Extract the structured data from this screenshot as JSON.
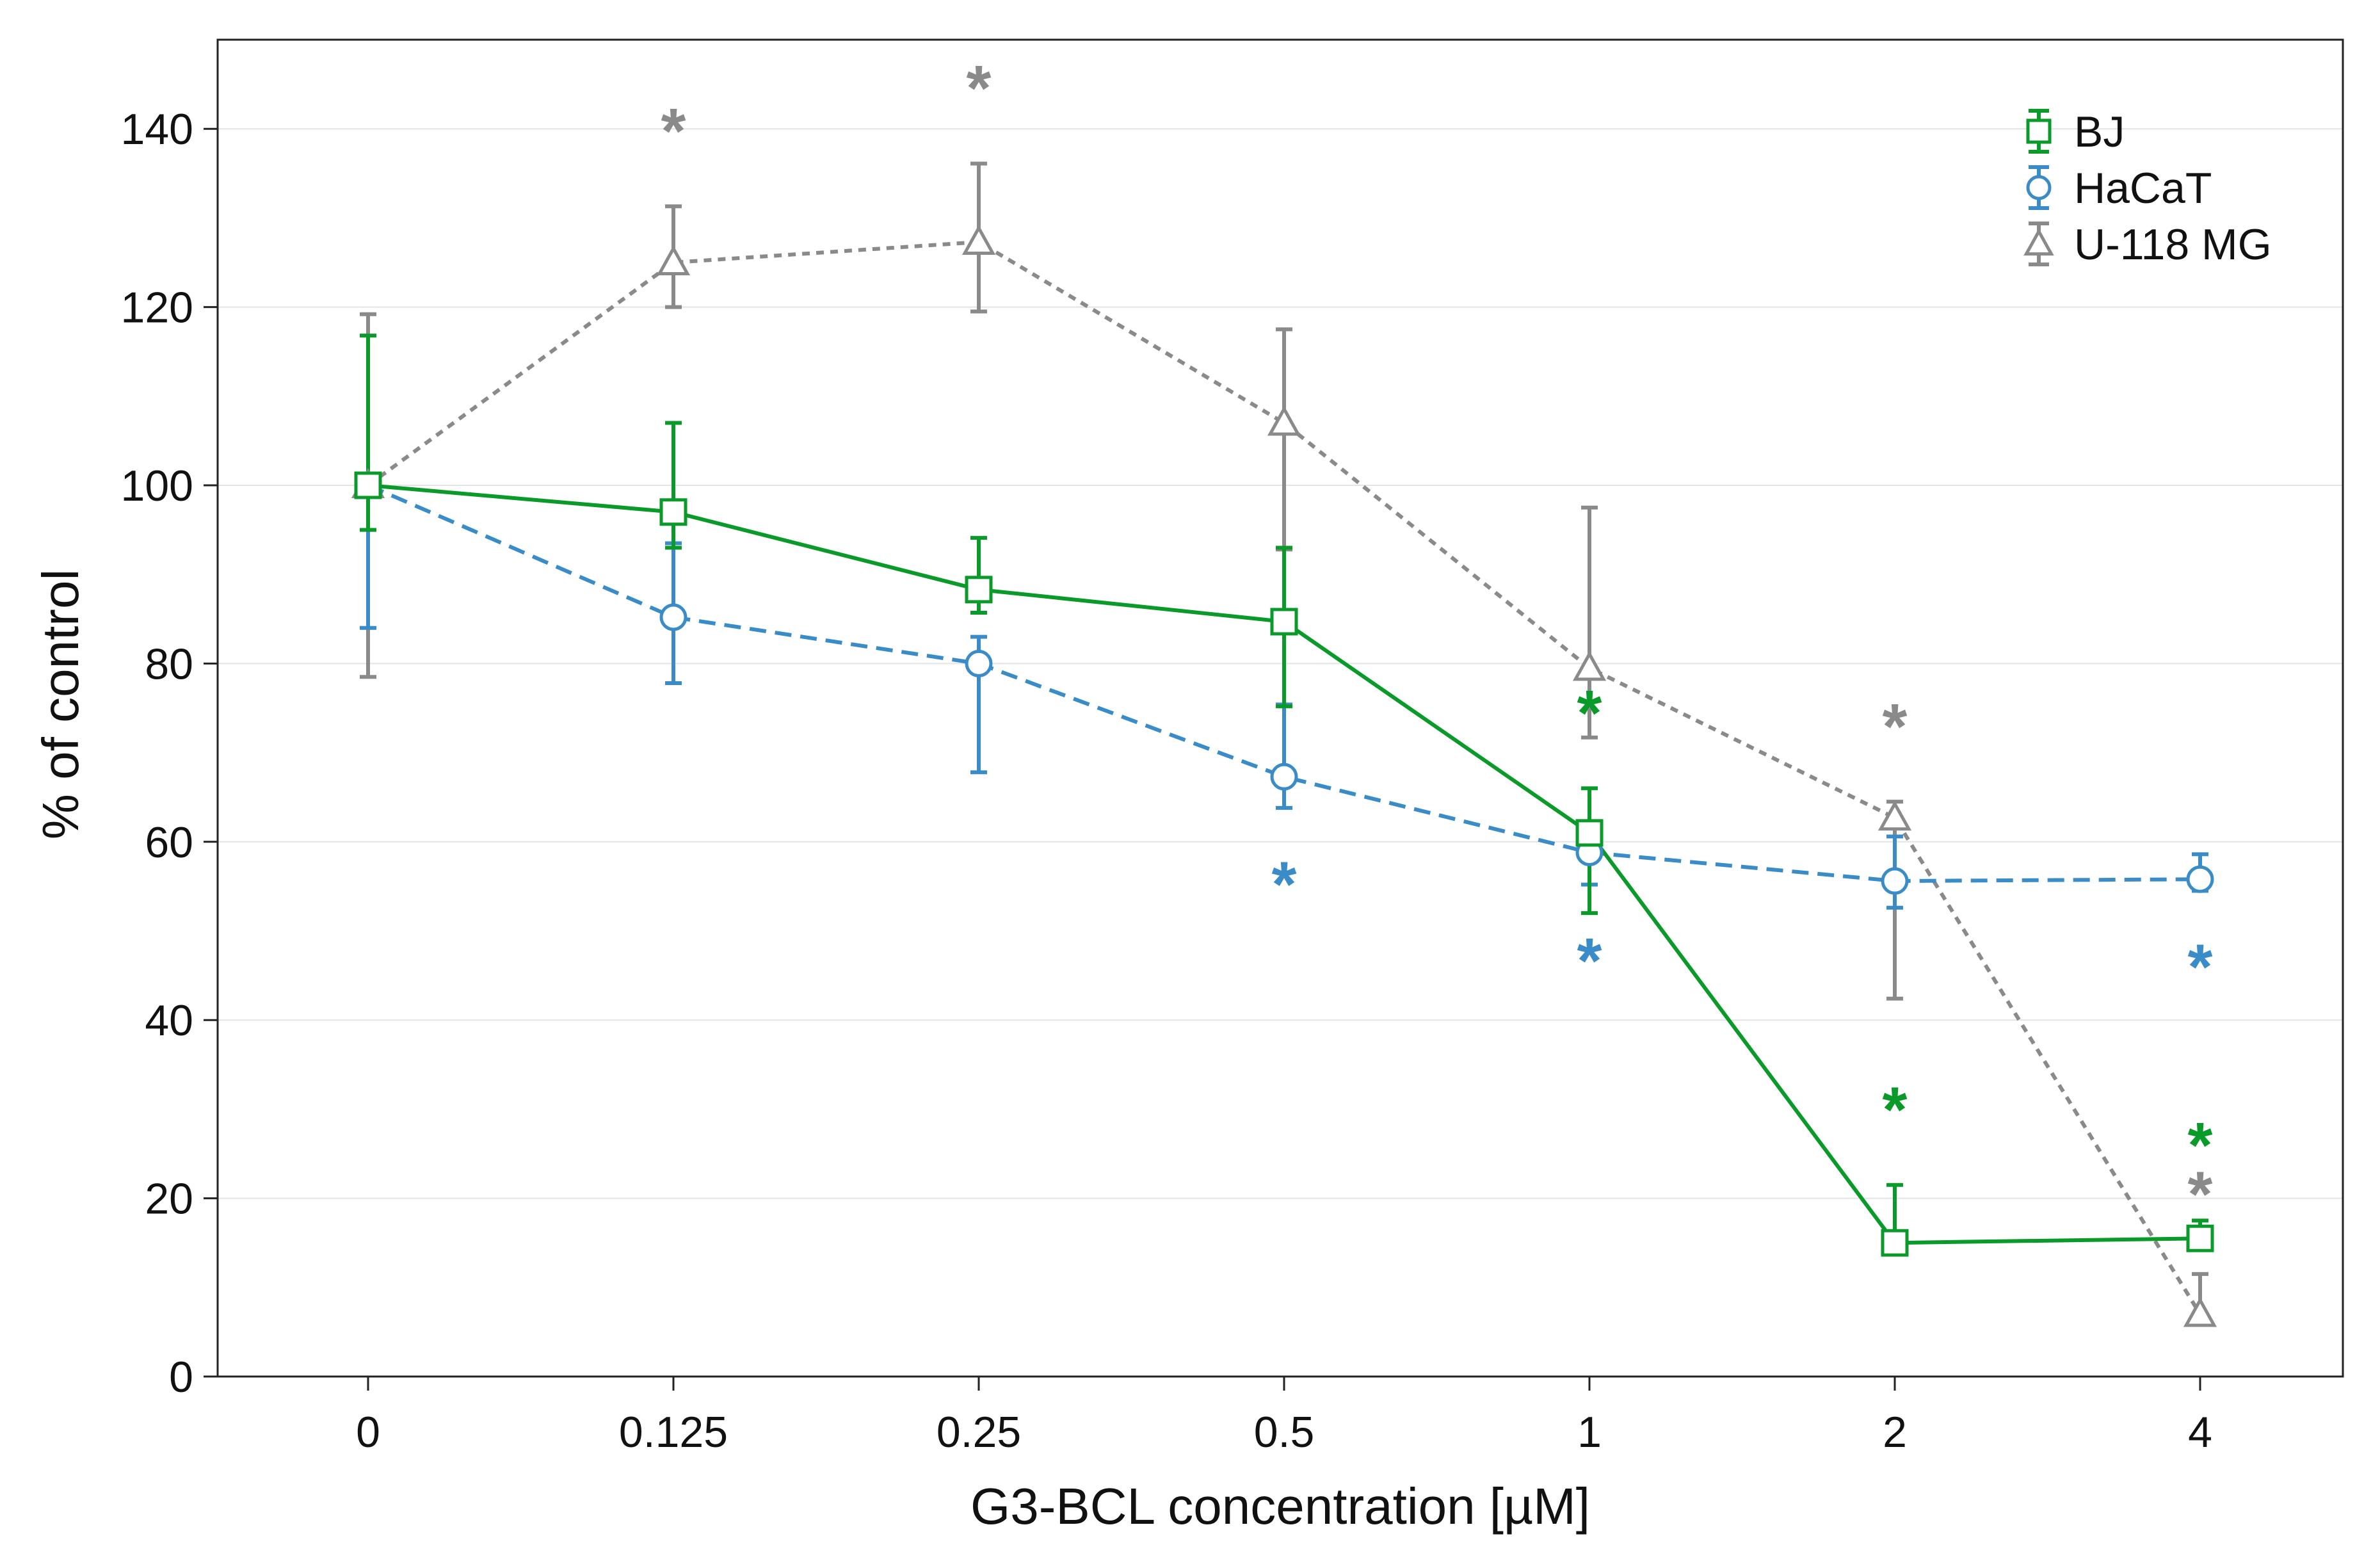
{
  "chart_data": {
    "type": "line",
    "title": "",
    "xlabel": "G3-BCL concentration [µM]",
    "ylabel": "% of control",
    "categories": [
      "0",
      "0.125",
      "0.25",
      "0.5",
      "1",
      "2",
      "4"
    ],
    "ylim": [
      0,
      150
    ],
    "yticks": [
      0,
      20,
      40,
      60,
      80,
      100,
      120,
      140
    ],
    "legend_position": "top-right",
    "series": [
      {
        "name": "BJ",
        "color": "#0a9a2a",
        "line_style": "solid",
        "marker": "square",
        "values": [
          100,
          97,
          88.3,
          84.7,
          61,
          15,
          15.5
        ],
        "err_low": [
          5,
          4,
          2.6,
          9.5,
          9,
          0,
          1.2
        ],
        "err_high": [
          16.8,
          10,
          5.8,
          8.3,
          5,
          6.5,
          2
        ],
        "significant": [
          false,
          false,
          false,
          false,
          true,
          true,
          true
        ],
        "significance_label": "*"
      },
      {
        "name": "HaCaT",
        "color": "#3a8cc8",
        "line_style": "dashed",
        "marker": "circle",
        "values": [
          100,
          85.2,
          80,
          67.3,
          58.8,
          55.6,
          55.8
        ],
        "err_low": [
          16,
          7.4,
          12.2,
          3.5,
          3.6,
          3,
          1.3
        ],
        "err_high": [
          0,
          8.3,
          3,
          8.1,
          3,
          5,
          2.8
        ],
        "significant": [
          false,
          false,
          false,
          true,
          true,
          false,
          true
        ],
        "significance_label": "*"
      },
      {
        "name": "U-118 MG",
        "color": "#8a8a8a",
        "line_style": "dotted",
        "marker": "triangle",
        "values": [
          100,
          125,
          127.3,
          107,
          79.5,
          62.7,
          7
        ],
        "err_low": [
          21.5,
          5,
          7.8,
          14.2,
          7.8,
          20.3,
          0
        ],
        "err_high": [
          19.2,
          6.3,
          8.8,
          10.5,
          18,
          1.8,
          4.5
        ],
        "significant": [
          false,
          true,
          true,
          false,
          false,
          true,
          true
        ],
        "significance_label": "*"
      }
    ]
  }
}
